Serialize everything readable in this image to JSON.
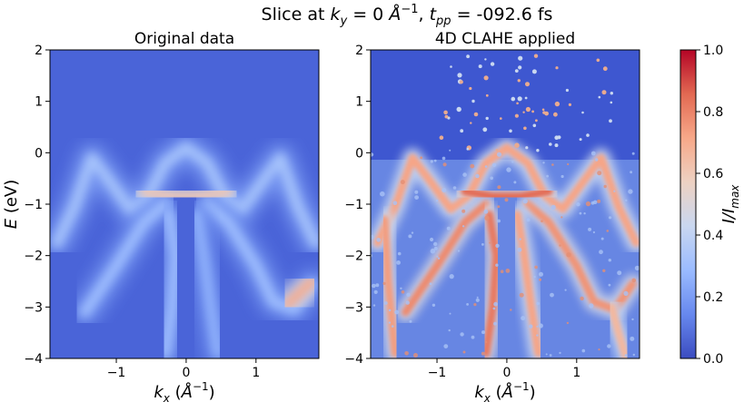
{
  "figure": {
    "title_text": "Slice at ",
    "title_ky": "k",
    "title_ky_sub": "y",
    "title_eq1": " = 0 ",
    "title_unit": "Å",
    "title_unit_sup": "−1",
    "title_sep": ", ",
    "title_t": "t",
    "title_t_sub": "pp",
    "title_eq2": " = -092.6 fs"
  },
  "chart_data": [
    {
      "type": "heatmap",
      "title": "Original data",
      "xlabel": "k_x (Å^-1)",
      "ylabel": "E (eV)",
      "xlim": [
        -1.95,
        1.9
      ],
      "ylim": [
        -4,
        2
      ],
      "xticks": [
        -1,
        0,
        1
      ],
      "xtick_labels": [
        "−1",
        "0",
        "1"
      ],
      "yticks": [
        2,
        1,
        0,
        -1,
        -2,
        -3,
        -4
      ],
      "ytick_labels": [
        "2",
        "1",
        "0",
        "−1",
        "−2",
        "−3",
        "−4"
      ],
      "background_value": 0.08,
      "bands": [
        {
          "points": [
            [
              -1.85,
              -1.75
            ],
            [
              -1.6,
              -1.05
            ],
            [
              -1.35,
              -0.1
            ],
            [
              -1.1,
              -0.55
            ],
            [
              -0.8,
              -1.1
            ],
            [
              -0.55,
              -0.85
            ],
            [
              -0.3,
              -0.2
            ],
            [
              0.0,
              0.1
            ],
            [
              0.3,
              -0.2
            ],
            [
              0.55,
              -0.85
            ],
            [
              0.8,
              -1.1
            ],
            [
              1.1,
              -0.55
            ],
            [
              1.35,
              -0.1
            ],
            [
              1.6,
              -1.05
            ],
            [
              1.85,
              -1.75
            ]
          ],
          "intensity": 0.32
        },
        {
          "points": [
            [
              -1.45,
              -3.1
            ],
            [
              -1.0,
              -2.2
            ],
            [
              -0.6,
              -1.35
            ],
            [
              -0.3,
              -1.0
            ]
          ],
          "intensity": 0.3
        },
        {
          "points": [
            [
              0.3,
              -1.0
            ],
            [
              0.6,
              -1.35
            ],
            [
              1.0,
              -2.2
            ],
            [
              1.25,
              -2.9
            ],
            [
              1.55,
              -3.05
            ],
            [
              1.8,
              -2.55
            ]
          ],
          "intensity": 0.3
        },
        {
          "points": [
            [
              -0.6,
              -0.75
            ],
            [
              -0.2,
              -0.85
            ],
            [
              0.2,
              -0.85
            ],
            [
              0.6,
              -0.75
            ]
          ],
          "intensity": 0.62
        },
        {
          "points": [
            [
              -0.25,
              -1.2
            ],
            [
              -0.15,
              -2.0
            ],
            [
              -0.2,
              -3.0
            ],
            [
              -0.3,
              -3.9
            ]
          ],
          "intensity": 0.3
        },
        {
          "points": [
            [
              0.15,
              -1.2
            ],
            [
              0.25,
              -2.0
            ],
            [
              0.35,
              -3.0
            ],
            [
              0.45,
              -3.9
            ]
          ],
          "intensity": 0.26
        },
        {
          "points": [
            [
              1.45,
              -2.95
            ],
            [
              1.65,
              -2.7
            ],
            [
              1.8,
              -2.5
            ]
          ],
          "intensity": 0.7
        }
      ]
    },
    {
      "type": "heatmap",
      "title": "4D CLAHE applied",
      "xlabel": "k_x (Å^-1)",
      "ylabel": "",
      "xlim": [
        -1.95,
        1.9
      ],
      "ylim": [
        -4,
        2
      ],
      "xticks": [
        -1,
        0,
        1
      ],
      "xtick_labels": [
        "−1",
        "0",
        "1"
      ],
      "yticks": [
        2,
        1,
        0,
        -1,
        -2,
        -3,
        -4
      ],
      "ytick_labels": [
        "2",
        "1",
        "0",
        "−1",
        "−2",
        "−3",
        "−4"
      ],
      "background_value": 0.1,
      "noisy_region_below": 0.1,
      "bands": [
        {
          "points": [
            [
              -1.85,
              -1.75
            ],
            [
              -1.6,
              -1.05
            ],
            [
              -1.35,
              -0.1
            ],
            [
              -1.1,
              -0.55
            ],
            [
              -0.8,
              -1.1
            ],
            [
              -0.55,
              -0.85
            ],
            [
              -0.3,
              -0.2
            ],
            [
              0.0,
              0.1
            ],
            [
              0.3,
              -0.2
            ],
            [
              0.55,
              -0.85
            ],
            [
              0.8,
              -1.1
            ],
            [
              1.1,
              -0.55
            ],
            [
              1.35,
              -0.1
            ],
            [
              1.6,
              -1.05
            ],
            [
              1.85,
              -1.75
            ]
          ],
          "intensity": 0.72
        },
        {
          "points": [
            [
              -1.45,
              -3.1
            ],
            [
              -1.0,
              -2.2
            ],
            [
              -0.6,
              -1.35
            ],
            [
              -0.3,
              -1.0
            ]
          ],
          "intensity": 0.78
        },
        {
          "points": [
            [
              0.3,
              -1.0
            ],
            [
              0.6,
              -1.35
            ],
            [
              1.0,
              -2.2
            ],
            [
              1.25,
              -2.9
            ],
            [
              1.55,
              -3.05
            ],
            [
              1.8,
              -2.55
            ]
          ],
          "intensity": 0.76
        },
        {
          "points": [
            [
              -0.6,
              -0.75
            ],
            [
              -0.2,
              -0.85
            ],
            [
              0.2,
              -0.85
            ],
            [
              0.6,
              -0.75
            ]
          ],
          "intensity": 0.85
        },
        {
          "points": [
            [
              -0.25,
              -1.2
            ],
            [
              -0.15,
              -2.0
            ],
            [
              -0.2,
              -3.0
            ],
            [
              -0.3,
              -3.9
            ]
          ],
          "intensity": 0.82
        },
        {
          "points": [
            [
              0.15,
              -1.2
            ],
            [
              0.25,
              -2.0
            ],
            [
              0.35,
              -3.0
            ],
            [
              0.45,
              -3.9
            ]
          ],
          "intensity": 0.72
        },
        {
          "points": [
            [
              -1.75,
              -1.3
            ],
            [
              -1.7,
              -2.5
            ],
            [
              -1.6,
              -3.9
            ]
          ],
          "intensity": 0.74
        },
        {
          "points": [
            [
              1.5,
              -3.0
            ],
            [
              1.6,
              -3.5
            ],
            [
              1.7,
              -3.95
            ]
          ],
          "intensity": 0.66
        }
      ]
    }
  ],
  "colorbar": {
    "label_main": "I/I",
    "label_sub": "max",
    "vmin": 0.0,
    "vmax": 1.0,
    "ticks": [
      "0.0",
      "0.2",
      "0.4",
      "0.6",
      "0.8",
      "1.0"
    ],
    "colormap": "coolwarm",
    "stops": [
      "#3b4cc0",
      "#6788ee",
      "#9abbff",
      "#c9d7f0",
      "#edd1c2",
      "#f7a889",
      "#e26952",
      "#b40426"
    ]
  }
}
